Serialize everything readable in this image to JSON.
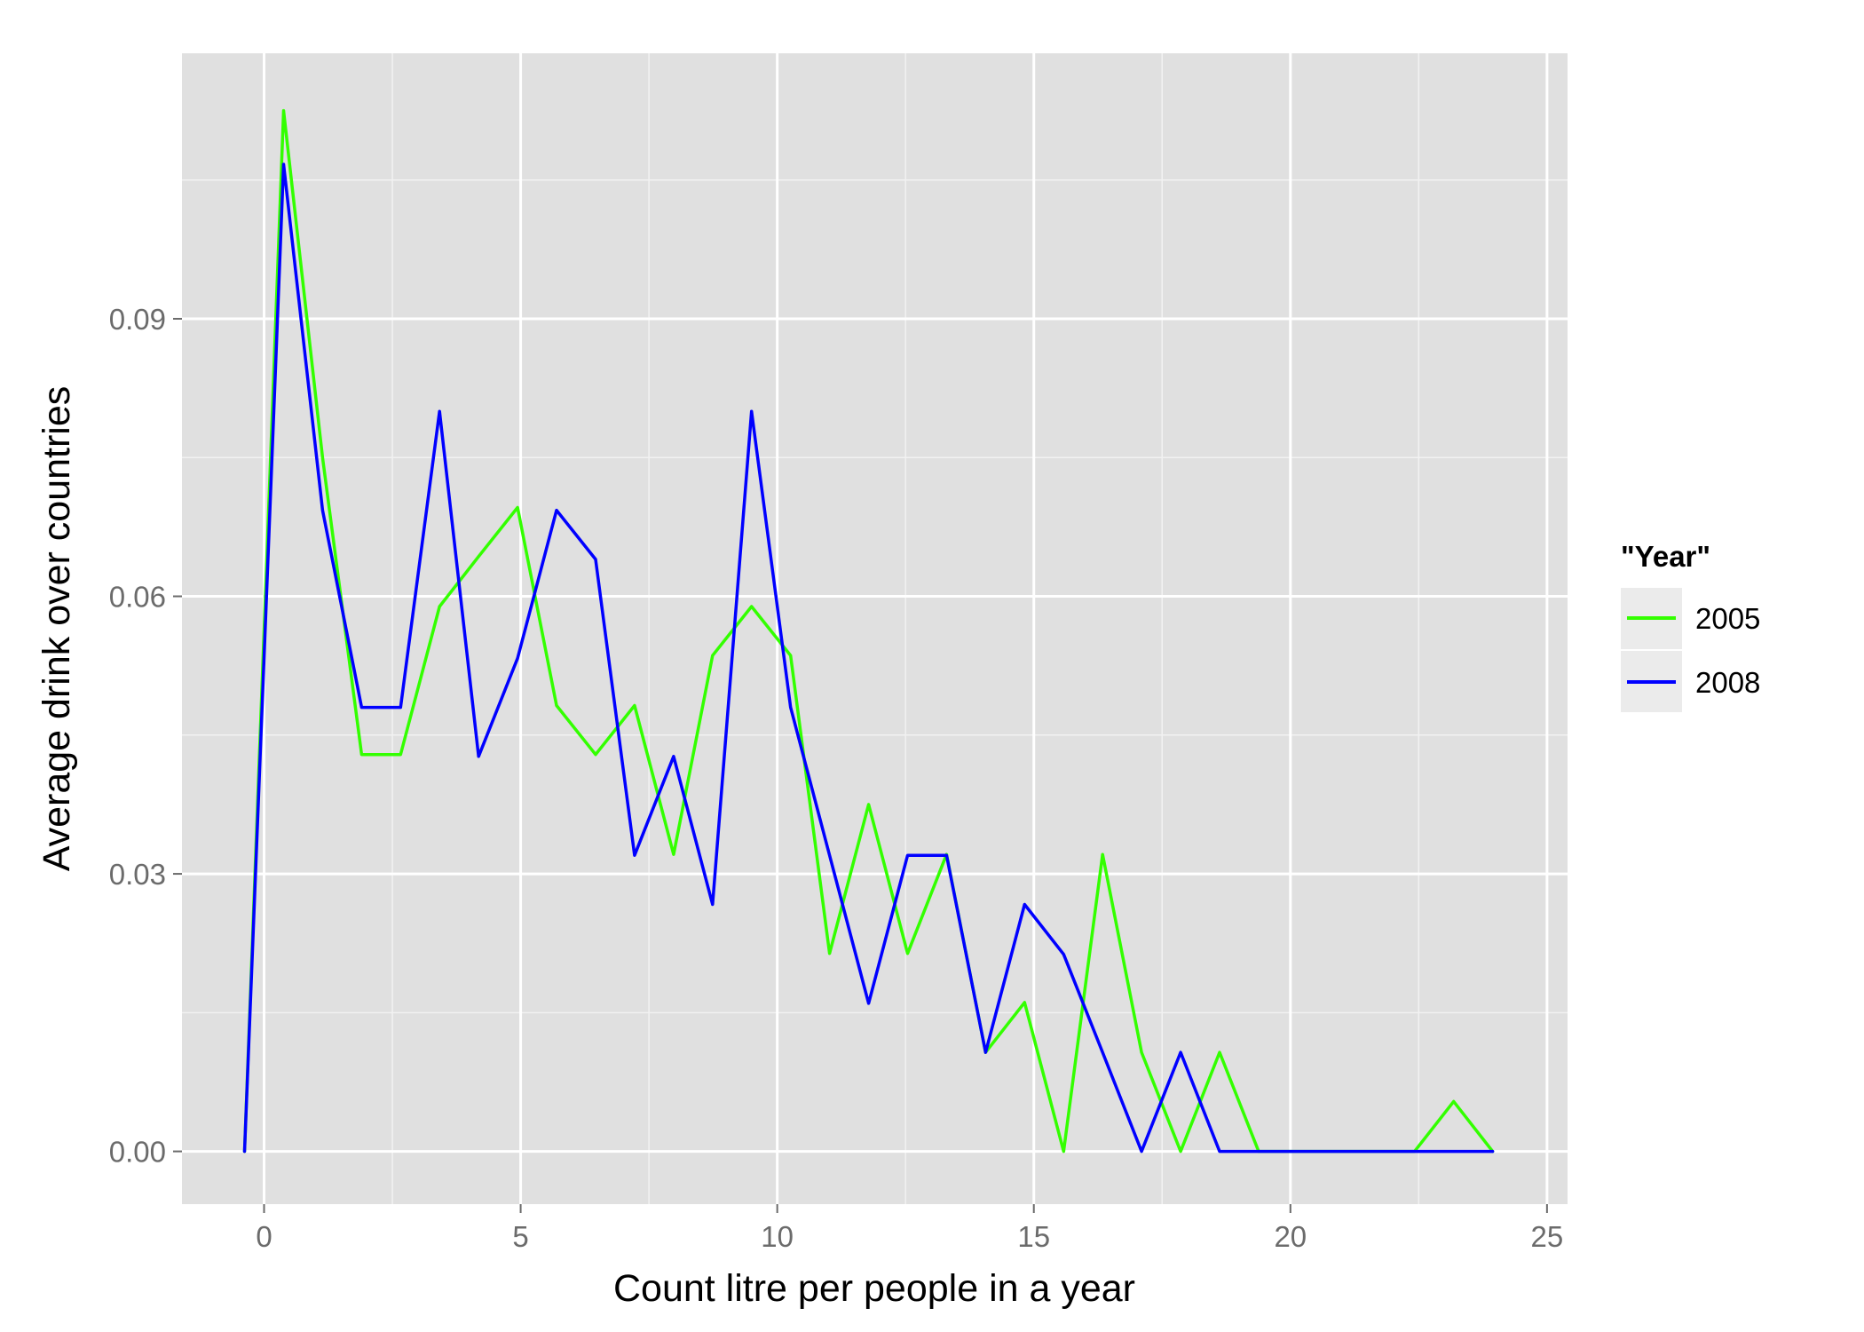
{
  "chart_data": {
    "type": "line",
    "xlabel": "Count litre per people in a year",
    "ylabel": "Average drink over countries",
    "xlim": [
      -1.6,
      25.4
    ],
    "ylim": [
      -0.0057,
      0.1187
    ],
    "x_ticks": [
      0,
      5,
      10,
      15,
      20,
      25
    ],
    "x_tick_labels": [
      "0",
      "5",
      "10",
      "15",
      "20",
      "25"
    ],
    "y_ticks": [
      0.0,
      0.03,
      0.06,
      0.09
    ],
    "y_tick_labels": [
      "0.00",
      "0.03",
      "0.06",
      "0.09"
    ],
    "grid": true,
    "panel_background": "#e0e0e0",
    "grid_color": "#ffffff",
    "legend": {
      "title": "\"Year\"",
      "position": "right",
      "key_background": "#ebebeb"
    },
    "series": [
      {
        "name": "2005",
        "color": "#33ff00",
        "x": [
          -0.38,
          0.38,
          1.14,
          1.9,
          2.66,
          3.42,
          4.18,
          4.94,
          5.7,
          6.46,
          7.22,
          7.98,
          8.74,
          9.5,
          10.26,
          11.02,
          11.78,
          12.54,
          13.3,
          14.06,
          14.82,
          15.58,
          16.34,
          17.1,
          17.86,
          18.62,
          19.38,
          20.14,
          20.9,
          21.66,
          22.42,
          23.18,
          23.94
        ],
        "y": [
          0.0,
          0.1125,
          0.075,
          0.0429,
          0.0429,
          0.0589,
          0.0643,
          0.0696,
          0.0482,
          0.0429,
          0.0482,
          0.0321,
          0.0536,
          0.0589,
          0.0536,
          0.0214,
          0.0375,
          0.0214,
          0.0321,
          0.0107,
          0.0161,
          0.0,
          0.0321,
          0.0107,
          0.0,
          0.0107,
          0.0,
          0.0,
          0.0,
          0.0,
          0.0,
          0.0054,
          0.0
        ]
      },
      {
        "name": "2008",
        "color": "#0000ff",
        "x": [
          -0.38,
          0.38,
          1.14,
          1.9,
          2.66,
          3.42,
          4.18,
          4.94,
          5.7,
          6.46,
          7.22,
          7.98,
          8.74,
          9.5,
          10.26,
          11.02,
          11.78,
          12.54,
          13.3,
          14.06,
          14.82,
          15.58,
          16.34,
          17.1,
          17.86,
          18.62,
          19.38,
          20.14,
          20.9,
          21.66,
          22.42,
          23.18,
          23.94
        ],
        "y": [
          0.0,
          0.1067,
          0.0693,
          0.048,
          0.048,
          0.08,
          0.0427,
          0.0533,
          0.0693,
          0.064,
          0.032,
          0.0427,
          0.0267,
          0.08,
          0.048,
          0.032,
          0.016,
          0.032,
          0.032,
          0.0107,
          0.0267,
          0.0213,
          0.0107,
          0.0,
          0.0107,
          0.0,
          0.0,
          0.0,
          0.0,
          0.0,
          0.0,
          0.0,
          0.0
        ]
      }
    ]
  }
}
